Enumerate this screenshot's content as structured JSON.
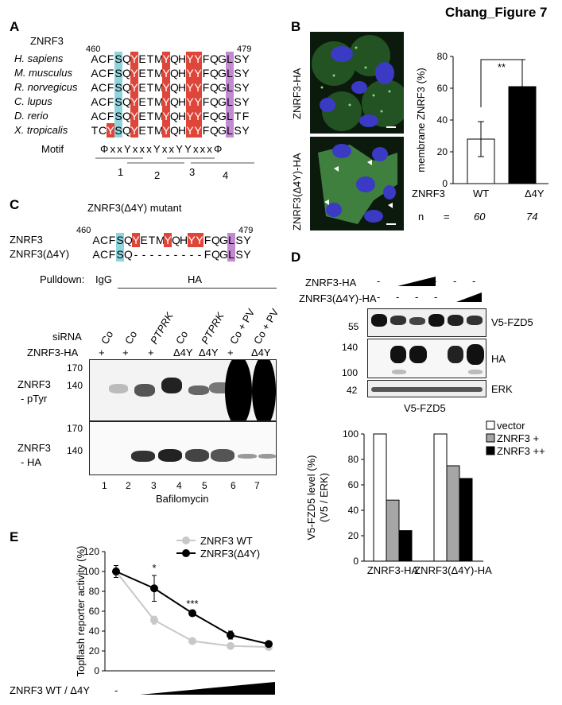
{
  "figure_title": "Chang_Figure 7",
  "panels": {
    "A": {
      "label": "A",
      "protein": "ZNRF3",
      "start_pos": "460",
      "end_pos": "479",
      "species": [
        "H. sapiens",
        "M. musculus",
        "R. norvegicus",
        "C. lupus",
        "D. rerio",
        "X. tropicalis"
      ],
      "sequences": [
        "ACFSQYETMYQHYYFQGLSY",
        "ACFSQYETMYQHYYFQGLSY",
        "ACFSQYETMYQHYYFQGLSY",
        "ACFSQYETMYQHYYFQGLSY",
        "ACFSQYETMYQHYYFQGLTF",
        "TCYSQYETMYQHYYFQGLSY"
      ],
      "motif_label": "Motif",
      "motif": "ΦxxYxxxYxxYYxxxΦ",
      "motif_numbers": [
        "1",
        "2",
        "3",
        "4"
      ]
    },
    "B": {
      "label": "B",
      "image_labels": [
        "ZNRF3-HA",
        "ZNRF3(Δ4Y)-HA"
      ],
      "chart_data": {
        "type": "bar",
        "categories": [
          "WT",
          "Δ4Y"
        ],
        "values": [
          28,
          61
        ],
        "errors": [
          11,
          17
        ],
        "ylabel": "membrane ZNRF3 (%)",
        "ylim": [
          0,
          80
        ],
        "yticks": [
          "0",
          "20",
          "40",
          "60",
          "80"
        ],
        "significance": "**",
        "colors": [
          "#ffffff",
          "#000000"
        ]
      },
      "row_label": "ZNRF3",
      "n_label": "n",
      "n_equals": "=",
      "n_values": [
        "60",
        "74"
      ]
    },
    "C": {
      "label": "C",
      "title": "ZNRF3(Δ4Y) mutant",
      "start_pos": "460",
      "end_pos": "479",
      "rows": [
        {
          "name": "ZNRF3",
          "seq": "ACFSQYETMYQHYYFQGLSY"
        },
        {
          "name": "ZNRF3(Δ4Y)",
          "seq": "ACFSQ---------FQGLSY"
        }
      ],
      "pulldown_label": "Pulldown:",
      "pulldown_igg": "IgG",
      "pulldown_ha": "HA",
      "sirna_label": "siRNA",
      "sirna_lanes": [
        "Co",
        "Co",
        "PTPRK",
        "Co",
        "PTPRK",
        "Co + PV",
        "Co + PV"
      ],
      "sirna_italic": [
        false,
        false,
        true,
        false,
        true,
        false,
        false
      ],
      "znrf3ha_label": "ZNRF3-HA",
      "znrf3ha_lanes": [
        "+",
        "+",
        "+",
        "Δ4Y",
        "Δ4Y",
        "+",
        "Δ4Y"
      ],
      "blot1_label_l1": "ZNRF3",
      "blot1_label_l2": "- pTyr",
      "blot1_mw": [
        "170",
        "140"
      ],
      "blot2_label_l1": "ZNRF3",
      "blot2_label_l2": "- HA",
      "blot2_mw": [
        "170",
        "140"
      ],
      "lane_numbers": [
        "1",
        "2",
        "3",
        "4",
        "5",
        "6",
        "7"
      ],
      "treatment": "Bafilomycin"
    },
    "D": {
      "label": "D",
      "row1_label": "ZNRF3-HA",
      "row2_label": "ZNRF3(Δ4Y)-HA",
      "row1_marks": [
        "-",
        "-",
        "-",
        "-"
      ],
      "row2_marks": [
        "-",
        "-",
        "-",
        "-"
      ],
      "blot_labels": [
        "V5-FZD5",
        "HA",
        "ERK"
      ],
      "mw": [
        "55",
        "140",
        "100",
        "42"
      ],
      "blot_caption": "V5-FZD5",
      "chart_data": {
        "type": "bar",
        "groups": [
          "ZNRF3-HA",
          "ZNRF3(Δ4Y)-HA"
        ],
        "series": [
          {
            "name": "vector",
            "values": [
              100,
              100
            ],
            "color": "#ffffff"
          },
          {
            "name": "ZNRF3 +",
            "values": [
              48,
              75
            ],
            "color": "#a6a6a6"
          },
          {
            "name": "ZNRF3 ++",
            "values": [
              24,
              65
            ],
            "color": "#000000"
          }
        ],
        "ylabel": "V5-FZD5 level (%)",
        "ylabel2": "(V5 / ERK)",
        "ylim": [
          0,
          100
        ],
        "yticks": [
          "0",
          "20",
          "40",
          "60",
          "80",
          "100"
        ],
        "legend": "top-right"
      }
    },
    "E": {
      "label": "E",
      "chart_data": {
        "type": "line",
        "x": [
          0,
          1,
          2,
          3,
          4
        ],
        "series": [
          {
            "name": "ZNRF3 WT",
            "values": [
              100,
              51,
              30,
              25,
              24
            ],
            "errors": [
              4,
              4,
              1,
              2,
              1
            ],
            "color": "#c8c8c8"
          },
          {
            "name": "ZNRF3(Δ4Y)",
            "values": [
              100,
              83,
              58,
              36,
              27
            ],
            "errors": [
              6,
              13,
              3,
              4,
              2
            ],
            "color": "#000000"
          }
        ],
        "ylabel": "Topflash reporter activity (%)",
        "ylim": [
          0,
          120
        ],
        "yticks": [
          "0",
          "20",
          "40",
          "60",
          "80",
          "100",
          "120"
        ],
        "annotations": [
          {
            "x": 1,
            "text": "*"
          },
          {
            "x": 2,
            "text": "***"
          }
        ],
        "legend": "top-right"
      },
      "xlabel": "ZNRF3 WT / Δ4Y",
      "x_minus": "-"
    }
  }
}
